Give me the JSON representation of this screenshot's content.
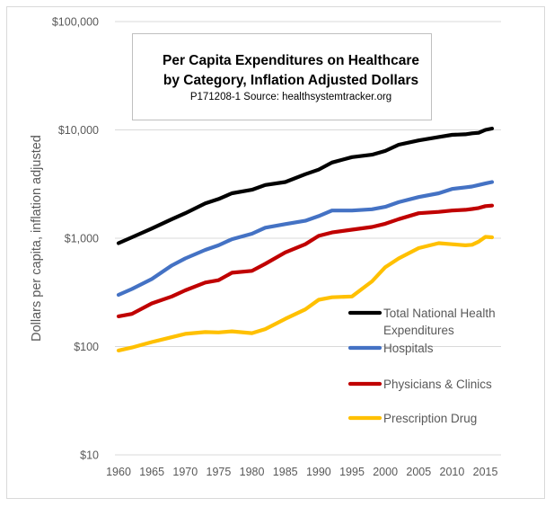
{
  "chart_data": {
    "type": "line",
    "title": "Per Capita Expenditures on Healthcare by Category, Inflation Adjusted Dollars",
    "title_lines": [
      "Per Capita Expenditures on Healthcare",
      "by Category, Inflation Adjusted Dollars"
    ],
    "subtitle": "P171208-1 Source: healthsystemtracker.org",
    "xlabel": "",
    "ylabel": "Dollars per capita, inflation adjusted",
    "yscale": "log",
    "ylim": [
      10,
      100000
    ],
    "xlim": [
      1960,
      2016
    ],
    "grid": true,
    "legend_position": "bottom-right",
    "y_ticks": [
      {
        "value": 10,
        "label": "$10"
      },
      {
        "value": 100,
        "label": "$100"
      },
      {
        "value": 1000,
        "label": "$1,000"
      },
      {
        "value": 10000,
        "label": "$10,000"
      },
      {
        "value": 100000,
        "label": "$100,000"
      }
    ],
    "x_ticks": [
      1960,
      1965,
      1970,
      1975,
      1980,
      1985,
      1990,
      1995,
      2000,
      2005,
      2010,
      2015
    ],
    "x": [
      1960,
      1962,
      1965,
      1968,
      1970,
      1973,
      1975,
      1977,
      1980,
      1982,
      1985,
      1988,
      1990,
      1992,
      1995,
      1998,
      2000,
      2002,
      2005,
      2008,
      2010,
      2012,
      2013,
      2014,
      2015,
      2016
    ],
    "series": [
      {
        "name": "Total National Health Expenditures",
        "legend_lines": [
          "Total National Health",
          "Expenditures"
        ],
        "color": "#000000",
        "values": [
          900,
          1020,
          1230,
          1500,
          1700,
          2100,
          2300,
          2600,
          2800,
          3100,
          3300,
          3900,
          4300,
          5000,
          5600,
          5900,
          6400,
          7300,
          8000,
          8600,
          9000,
          9100,
          9300,
          9400,
          10000,
          10300
        ]
      },
      {
        "name": "Hospitals",
        "legend_lines": [
          "Hospitals"
        ],
        "color": "#4472c4",
        "values": [
          300,
          340,
          420,
          560,
          650,
          780,
          860,
          980,
          1100,
          1250,
          1350,
          1450,
          1600,
          1800,
          1800,
          1850,
          1950,
          2150,
          2400,
          2600,
          2850,
          2950,
          3000,
          3100,
          3200,
          3300
        ]
      },
      {
        "name": "Physicians & Clinics",
        "legend_lines": [
          "Physicians & Clinics"
        ],
        "color": "#c00000",
        "values": [
          190,
          200,
          250,
          290,
          330,
          390,
          410,
          480,
          500,
          580,
          740,
          880,
          1050,
          1130,
          1200,
          1270,
          1360,
          1500,
          1700,
          1750,
          1800,
          1830,
          1860,
          1900,
          1980,
          2000
        ]
      },
      {
        "name": "Prescription Drug",
        "legend_lines": [
          "Prescription Drug"
        ],
        "color": "#ffc000",
        "values": [
          92,
          98,
          110,
          122,
          131,
          136,
          135,
          138,
          133,
          145,
          180,
          220,
          270,
          285,
          290,
          400,
          540,
          650,
          810,
          900,
          880,
          860,
          870,
          930,
          1030,
          1020
        ]
      }
    ]
  }
}
